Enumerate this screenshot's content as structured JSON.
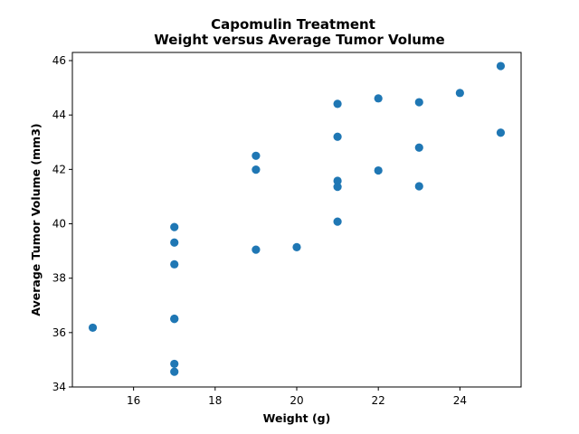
{
  "chart_data": {
    "type": "scatter",
    "title_line1": "Capomulin Treatment",
    "title_line2": "Weight versus Average Tumor Volume",
    "xlabel": "Weight (g)",
    "ylabel": "Average Tumor Volume (mm3)",
    "xlim": [
      14.5,
      25.5
    ],
    "ylim": [
      34,
      46.3
    ],
    "xticks": [
      16,
      18,
      20,
      22,
      24
    ],
    "yticks": [
      34,
      36,
      38,
      40,
      42,
      44,
      46
    ],
    "grid": false,
    "marker_color": "#1f77b4",
    "points": [
      {
        "x": 15,
        "y": 36.18
      },
      {
        "x": 17,
        "y": 39.88
      },
      {
        "x": 17,
        "y": 39.31
      },
      {
        "x": 17,
        "y": 38.51
      },
      {
        "x": 17,
        "y": 36.51
      },
      {
        "x": 17,
        "y": 36.5
      },
      {
        "x": 17,
        "y": 34.85
      },
      {
        "x": 17,
        "y": 34.56
      },
      {
        "x": 19,
        "y": 42.5
      },
      {
        "x": 19,
        "y": 41.99
      },
      {
        "x": 19,
        "y": 39.05
      },
      {
        "x": 20,
        "y": 39.14
      },
      {
        "x": 21,
        "y": 44.41
      },
      {
        "x": 21,
        "y": 43.2
      },
      {
        "x": 21,
        "y": 41.58
      },
      {
        "x": 21,
        "y": 41.36
      },
      {
        "x": 21,
        "y": 40.08
      },
      {
        "x": 22,
        "y": 44.61
      },
      {
        "x": 22,
        "y": 41.96
      },
      {
        "x": 23,
        "y": 44.47
      },
      {
        "x": 23,
        "y": 42.8
      },
      {
        "x": 23,
        "y": 41.38
      },
      {
        "x": 24,
        "y": 44.81
      },
      {
        "x": 25,
        "y": 45.8
      },
      {
        "x": 25,
        "y": 43.35
      }
    ]
  }
}
